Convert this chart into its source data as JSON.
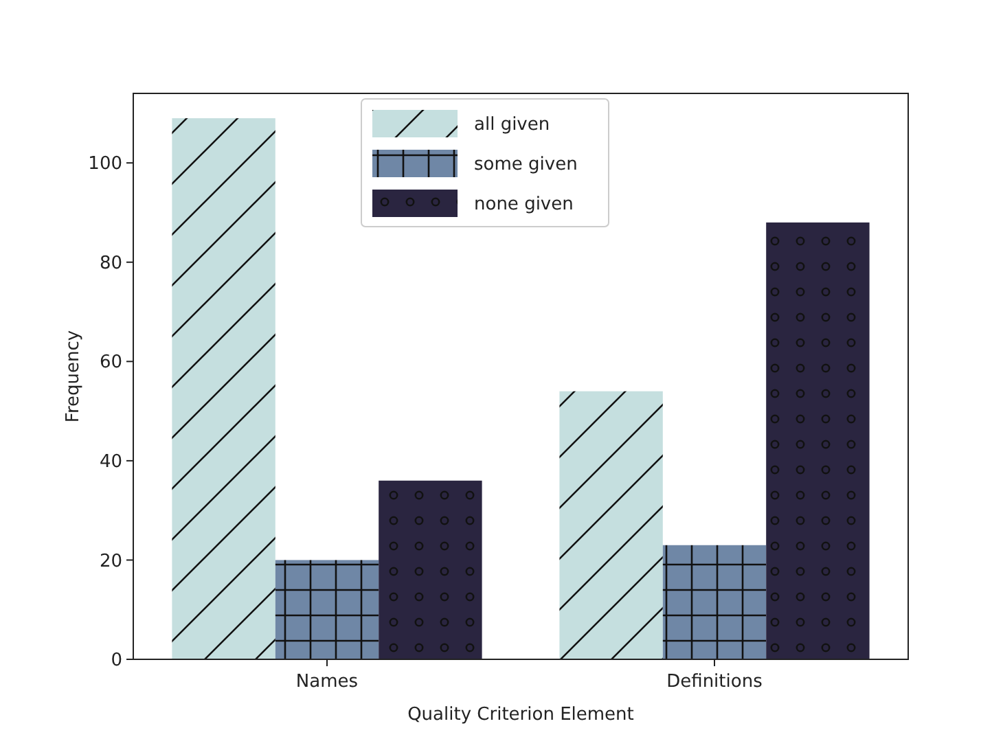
{
  "chart_data": {
    "type": "bar",
    "xlabel": "Quality Criterion Element",
    "ylabel": "Frequency",
    "categories": [
      "Names",
      "Definitions"
    ],
    "series": [
      {
        "name": "all given",
        "color": "#c5dfdf",
        "values": [
          109,
          54
        ]
      },
      {
        "name": "some given",
        "color": "#6f87a6",
        "values": [
          20,
          23
        ]
      },
      {
        "name": "none given",
        "color": "#2a2540",
        "values": [
          36,
          88
        ]
      }
    ],
    "ylim": [
      0,
      114
    ],
    "yticks": [
      0,
      20,
      40,
      60,
      80,
      100
    ],
    "legend": "top",
    "grid": false
  }
}
